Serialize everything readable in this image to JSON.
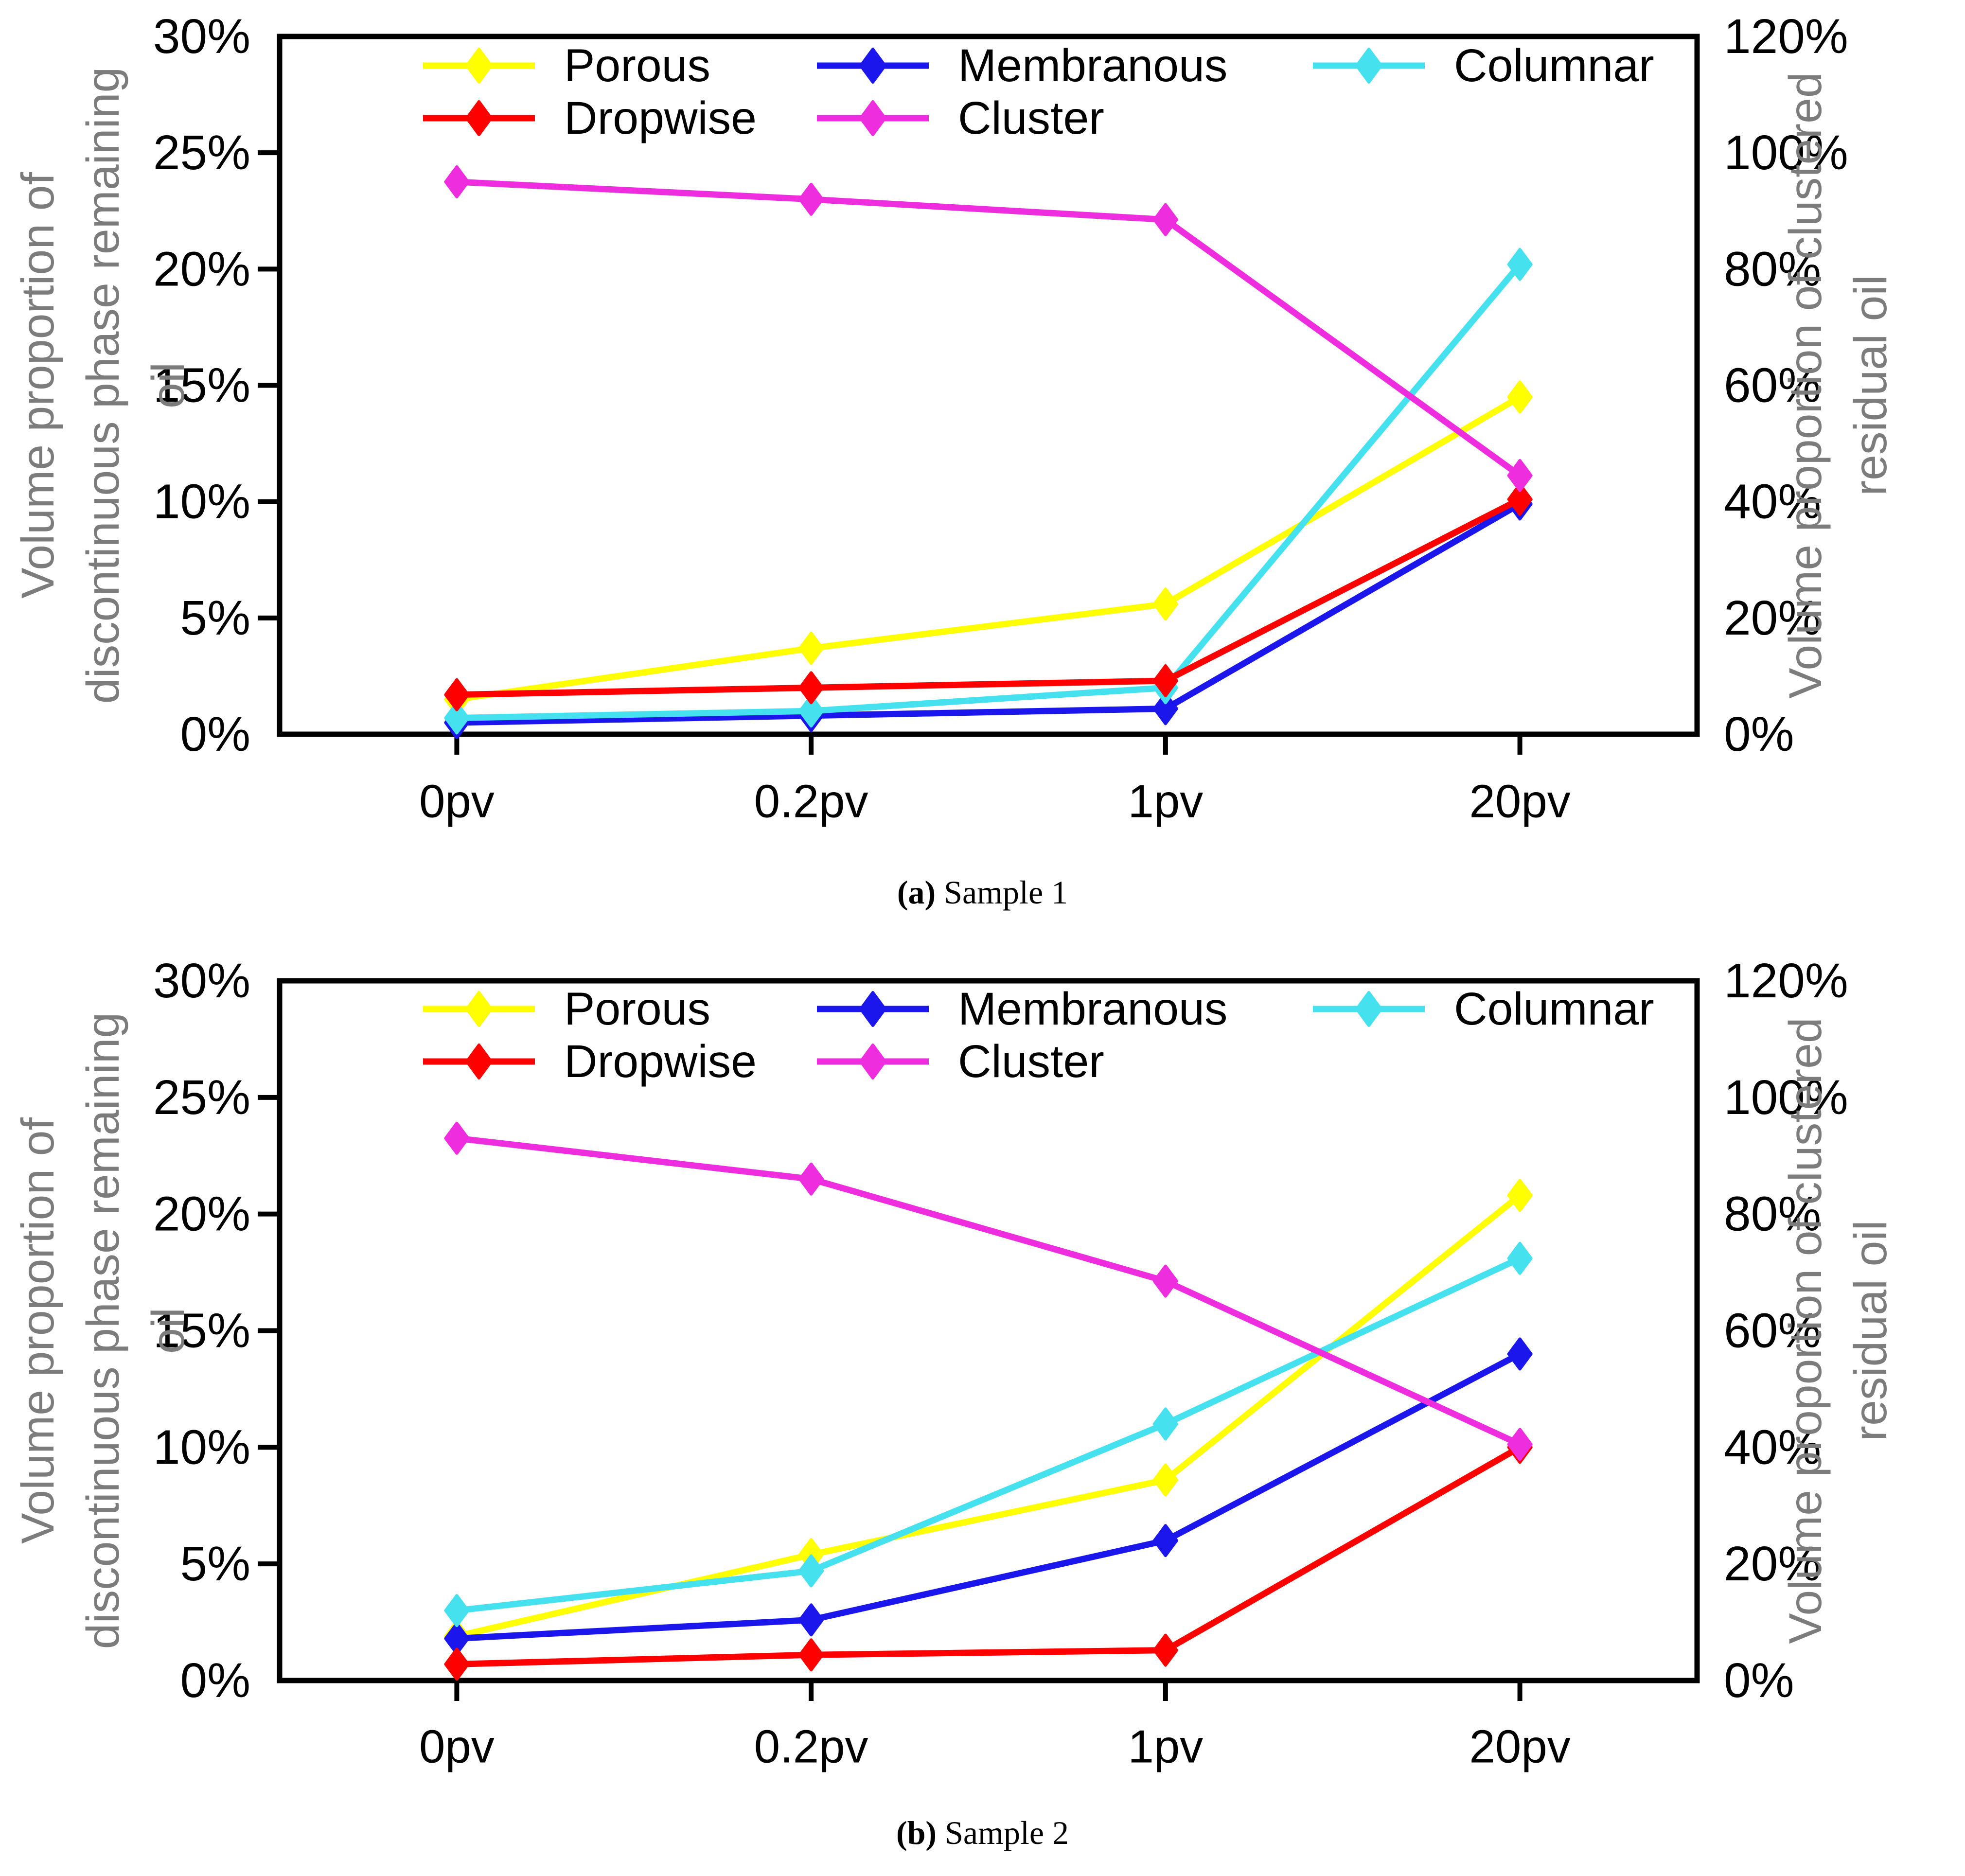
{
  "figure": {
    "background": "#FFFFFF",
    "colors": {
      "porous": "#FFFF00",
      "membranous": "#1A16EC",
      "columnar": "#45E1EE",
      "dropwise": "#FF0000",
      "cluster": "#EE2DDE",
      "axis_title": "#7C7C7C",
      "axis_line": "#000000"
    }
  },
  "chart_data": [
    {
      "id": "sample-1",
      "type": "line",
      "caption_bold": "(a)",
      "caption_rest": " Sample 1",
      "categories": [
        "0pv",
        "0.2pv",
        "1pv",
        "20pv"
      ],
      "grid": false,
      "legend_position": "top-inside",
      "left_axis": {
        "title_lines": [
          "Volume proportion of",
          "discontinuous phase remaining",
          "oil"
        ],
        "min": 0,
        "max": 30,
        "step": 5,
        "tick_labels": [
          "0%",
          "5%",
          "10%",
          "15%",
          "20%",
          "25%",
          "30%"
        ]
      },
      "right_axis": {
        "title_lines": [
          "Volume proportion of clustered",
          "residual oil"
        ],
        "min": 0,
        "max": 120,
        "step": 20,
        "tick_labels": [
          "0%",
          "20%",
          "40%",
          "60%",
          "80%",
          "100%",
          "120%"
        ]
      },
      "legend": {
        "rows": [
          [
            "Porous",
            "Membranous",
            "Columnar"
          ],
          [
            "Dropwise",
            "Cluster"
          ]
        ]
      },
      "series": [
        {
          "name": "Porous",
          "color_key": "porous",
          "axis": "left",
          "values": [
            1.5,
            3.7,
            5.6,
            14.5
          ]
        },
        {
          "name": "Membranous",
          "color_key": "membranous",
          "axis": "left",
          "values": [
            0.5,
            0.8,
            1.1,
            9.9
          ]
        },
        {
          "name": "Columnar",
          "color_key": "columnar",
          "axis": "left",
          "values": [
            0.7,
            1.0,
            2.0,
            20.2
          ]
        },
        {
          "name": "Dropwise",
          "color_key": "dropwise",
          "axis": "left",
          "values": [
            1.7,
            2.0,
            2.3,
            10.1
          ]
        },
        {
          "name": "Cluster",
          "color_key": "cluster",
          "axis": "right",
          "values": [
            95,
            92,
            88.5,
            44.5
          ]
        }
      ]
    },
    {
      "id": "sample-2",
      "type": "line",
      "caption_bold": "(b)",
      "caption_rest": " Sample 2",
      "categories": [
        "0pv",
        "0.2pv",
        "1pv",
        "20pv"
      ],
      "grid": false,
      "legend_position": "top-inside",
      "left_axis": {
        "title_lines": [
          "Volume proportion of",
          "discontinuous phase remaining",
          "oil"
        ],
        "min": 0,
        "max": 30,
        "step": 5,
        "tick_labels": [
          "0%",
          "5%",
          "10%",
          "15%",
          "20%",
          "25%",
          "30%"
        ]
      },
      "right_axis": {
        "title_lines": [
          "Volume proportion of clustered",
          "residual oil"
        ],
        "min": 0,
        "max": 120,
        "step": 20,
        "tick_labels": [
          "0%",
          "20%",
          "40%",
          "60%",
          "80%",
          "100%",
          "120%"
        ]
      },
      "legend": {
        "rows": [
          [
            "Porous",
            "Membranous",
            "Columnar"
          ],
          [
            "Dropwise",
            "Cluster"
          ]
        ]
      },
      "series": [
        {
          "name": "Porous",
          "color_key": "porous",
          "axis": "left",
          "values": [
            1.9,
            5.4,
            8.6,
            20.8
          ]
        },
        {
          "name": "Membranous",
          "color_key": "membranous",
          "axis": "left",
          "values": [
            1.8,
            2.6,
            6.0,
            14.0
          ]
        },
        {
          "name": "Columnar",
          "color_key": "columnar",
          "axis": "left",
          "values": [
            3.0,
            4.7,
            11.0,
            18.1
          ]
        },
        {
          "name": "Dropwise",
          "color_key": "dropwise",
          "axis": "left",
          "values": [
            0.7,
            1.1,
            1.3,
            10.0
          ]
        },
        {
          "name": "Cluster",
          "color_key": "cluster",
          "axis": "right",
          "values": [
            93,
            86,
            68.5,
            40.5
          ]
        }
      ]
    }
  ]
}
